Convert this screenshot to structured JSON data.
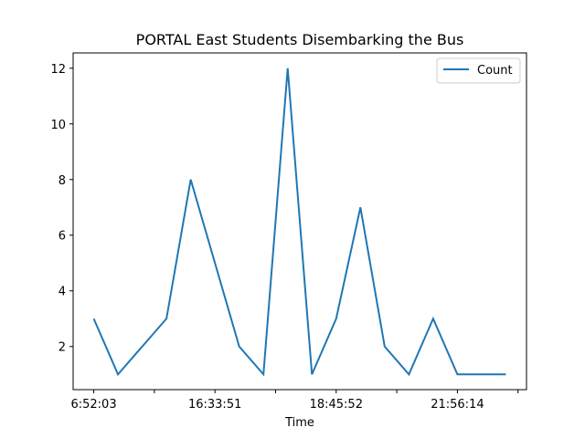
{
  "chart_data": {
    "type": "line",
    "title": "PORTAL East Students Disembarking the Bus",
    "xlabel": "Time",
    "ylabel": "",
    "x_tick_labels": [
      "6:52:03",
      "",
      "16:33:51",
      "",
      "18:45:52",
      "",
      "21:56:14",
      ""
    ],
    "x_tick_index": [
      0,
      2.5,
      5,
      7.5,
      10,
      12.5,
      15,
      17.5
    ],
    "xlim": [
      -0.85,
      17.85
    ],
    "yticks": [
      2,
      4,
      6,
      8,
      10,
      12
    ],
    "ylim": [
      0.45,
      12.55
    ],
    "series": [
      {
        "name": "Count",
        "color": "#1f77b4",
        "values": [
          3,
          1,
          2,
          3,
          8,
          5,
          2,
          1,
          12,
          1,
          3,
          7,
          2,
          1,
          3,
          1,
          1,
          1
        ]
      }
    ],
    "legend_position": "top-right",
    "grid": false
  }
}
